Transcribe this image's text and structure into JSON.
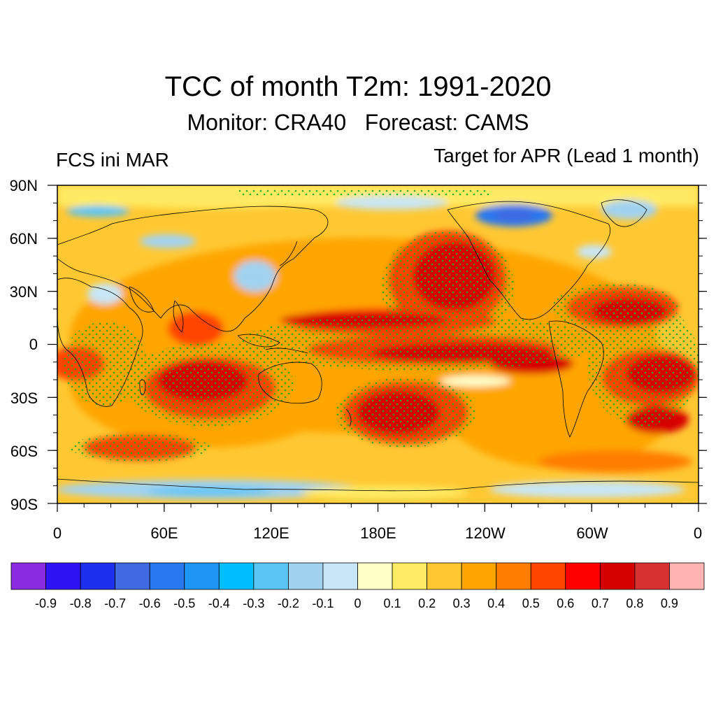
{
  "title": "TCC of month T2m: 1991-2020",
  "subtitle": "Monitor: CRA40   Forecast: CAMS",
  "left_string": "FCS ini MAR",
  "right_string": "Target for APR (Lead 1 month)",
  "lat_labels": [
    "90N",
    "60N",
    "30N",
    "0",
    "30S",
    "60S",
    "90S"
  ],
  "lon_labels": [
    "0",
    "60E",
    "120E",
    "180E",
    "120W",
    "60W",
    "0"
  ],
  "colorbar": {
    "colors": [
      "#8a2be2",
      "#2e14f5",
      "#1d30f0",
      "#4169e1",
      "#2878f0",
      "#1e96f5",
      "#00bfff",
      "#5ac4f5",
      "#a0d2f0",
      "#c8e6f5",
      "#ffffc8",
      "#ffeb64",
      "#ffc832",
      "#ffa500",
      "#ff7d00",
      "#ff4500",
      "#ff0000",
      "#d70000",
      "#d73232",
      "#ffb4b4"
    ],
    "labels": [
      "-0.9",
      "-0.8",
      "-0.7",
      "-0.6",
      "-0.5",
      "-0.4",
      "-0.3",
      "-0.2",
      "-0.1",
      "0",
      "0.1",
      "0.2",
      "0.3",
      "0.4",
      "0.5",
      "0.6",
      "0.7",
      "0.8",
      "0.9"
    ]
  },
  "stipple_color": "#22aa22"
}
